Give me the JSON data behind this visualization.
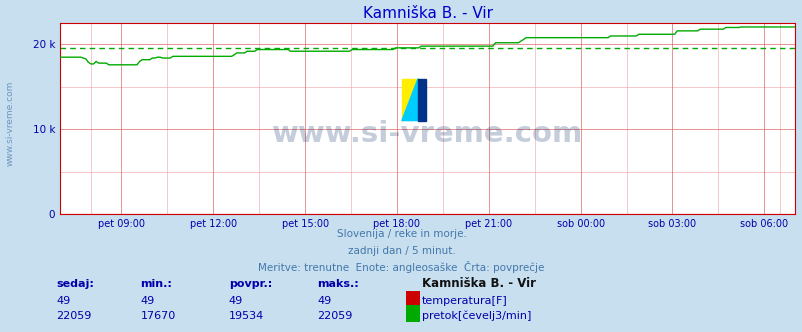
{
  "title": "Kamniška B. - Vir",
  "title_color": "#0000cc",
  "bg_color": "#c8dff0",
  "plot_bg_color": "#ffffff",
  "x_labels": [
    "pet 09:00",
    "pet 12:00",
    "pet 15:00",
    "pet 18:00",
    "pet 21:00",
    "sob 00:00",
    "sob 03:00",
    "sob 06:00"
  ],
  "x_ticks_norm": [
    0.0833,
    0.2083,
    0.3333,
    0.4583,
    0.5833,
    0.7083,
    0.8333,
    0.9583
  ],
  "y_ticks": [
    0,
    10000,
    20000
  ],
  "y_labels": [
    "0",
    "10 k",
    "20 k"
  ],
  "ylim_max": 22500,
  "temp_color": "#cc0000",
  "flow_color": "#00aa00",
  "avg_line_value": 19534,
  "watermark_text": "www.si-vreme.com",
  "watermark_color": "#1a3a6e",
  "watermark_alpha": 0.25,
  "sidewater_text": "www.si-vreme.com",
  "footer_lines": [
    "Slovenija / reke in morje.",
    "zadnji dan / 5 minut.",
    "Meritve: trenutne  Enote: angleosaške  Črta: povprečje"
  ],
  "footer_color": "#4477aa",
  "legend_title": "Kamniška B. - Vir",
  "col_headers": [
    "sedaj:",
    "min.:",
    "povpr.:",
    "maks.:"
  ],
  "col_header_color": "#0000aa",
  "legend_title_color": "#111111",
  "data_color": "#0000aa",
  "temp_sedaj": 49,
  "temp_min": 49,
  "temp_povpr": 49,
  "temp_maks": 49,
  "flow_sedaj": 22059,
  "flow_min": 17670,
  "flow_povpr": 19534,
  "flow_maks": 22059,
  "flow_data": [
    18500,
    18500,
    18500,
    18500,
    18500,
    18500,
    18500,
    18500,
    18500,
    18400,
    18300,
    17900,
    17700,
    17700,
    18000,
    17800,
    17800,
    17800,
    17800,
    17600,
    17600,
    17600,
    17600,
    17600,
    17600,
    17600,
    17600,
    17600,
    17600,
    17600,
    17600,
    18000,
    18200,
    18200,
    18200,
    18200,
    18400,
    18400,
    18500,
    18500,
    18400,
    18400,
    18400,
    18400,
    18600,
    18600,
    18600,
    18600,
    18600,
    18600,
    18600,
    18600,
    18600,
    18600,
    18600,
    18600,
    18600,
    18600,
    18600,
    18600,
    18600,
    18600,
    18600,
    18600,
    18600,
    18600,
    18600,
    18600,
    18800,
    19000,
    19000,
    19000,
    19000,
    19200,
    19200,
    19200,
    19200,
    19400,
    19400,
    19400,
    19400,
    19400,
    19400,
    19400,
    19400,
    19400,
    19400,
    19400,
    19400,
    19400,
    19200,
    19200,
    19200,
    19200,
    19200,
    19200,
    19200,
    19200,
    19200,
    19200,
    19200,
    19200,
    19200,
    19200,
    19200,
    19200,
    19200,
    19200,
    19200,
    19200,
    19200,
    19200,
    19200,
    19200,
    19400,
    19400,
    19400,
    19400,
    19400,
    19400,
    19400,
    19400,
    19400,
    19400,
    19400,
    19400,
    19400,
    19400,
    19400,
    19400,
    19400,
    19600,
    19600,
    19600,
    19600,
    19600,
    19600,
    19600,
    19600,
    19600,
    19600,
    19800,
    19800,
    19800,
    19800,
    19800,
    19800,
    19800,
    19800,
    19800,
    19800,
    19800,
    19800,
    19800,
    19800,
    19800,
    19800,
    19800,
    19800,
    19800,
    19800,
    19800,
    19800,
    19800,
    19800,
    19800,
    19800,
    19800,
    19800,
    19800,
    20200,
    20200,
    20200,
    20200,
    20200,
    20200,
    20200,
    20200,
    20200,
    20200,
    20400,
    20600,
    20800,
    20800,
    20800,
    20800,
    20800,
    20800,
    20800,
    20800,
    20800,
    20800,
    20800,
    20800,
    20800,
    20800,
    20800,
    20800,
    20800,
    20800,
    20800,
    20800,
    20800,
    20800,
    20800,
    20800,
    20800,
    20800,
    20800,
    20800,
    20800,
    20800,
    20800,
    20800,
    20800,
    21000,
    21000,
    21000,
    21000,
    21000,
    21000,
    21000,
    21000,
    21000,
    21000,
    21000,
    21200,
    21200,
    21200,
    21200,
    21200,
    21200,
    21200,
    21200,
    21200,
    21200,
    21200,
    21200,
    21200,
    21200,
    21200,
    21600,
    21600,
    21600,
    21600,
    21600,
    21600,
    21600,
    21600,
    21600,
    21800,
    21800,
    21800,
    21800,
    21800,
    21800,
    21800,
    21800,
    21800,
    21800,
    22000,
    22000,
    22000,
    22000,
    22000,
    22000,
    22059,
    22059,
    22059,
    22059,
    22059,
    22059,
    22059,
    22059,
    22059,
    22059,
    22059,
    22059,
    22059,
    22059,
    22059,
    22059,
    22059,
    22059,
    22059,
    22059,
    22059,
    22059
  ]
}
